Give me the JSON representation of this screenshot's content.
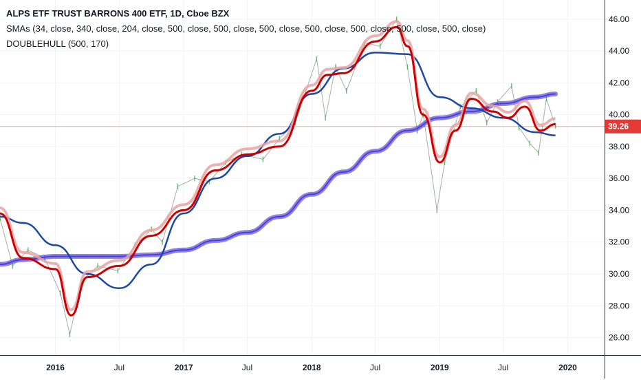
{
  "legend": {
    "title": "ALPS ETF TRUST BARRONS 400 ETF, 1D, Cboe BZX",
    "sma_line": "SMAs (34, close, 340, close, 204, close, 500, close, 500, close, 500, close, 500, close, 500, close, 500, close, 500, close)",
    "hull_line": "DOUBLEHULL (500, 170)"
  },
  "colors": {
    "price": "#4caf50",
    "price_down": "#5d6b5d",
    "sma_fast": "#cc0000",
    "sma_fast_shadow": "#e8a4a4",
    "sma_mid": "#1a47a8",
    "sma_slow": "#4a3ee8",
    "hull": "#6a5acd",
    "last_price_line": "#f4a6a6",
    "last_price_badge": "#e53935",
    "axis_text": "#131722"
  },
  "chart_data": {
    "type": "line",
    "title": "ALPS ETF TRUST BARRONS 400 ETF, 1D, Cboe BZX",
    "x_ticks": [
      "2016",
      "Jul",
      "2017",
      "Jul",
      "2018",
      "Jul",
      "2019",
      "Jul",
      "2020"
    ],
    "y_ticks": [
      "26.00",
      "28.00",
      "30.00",
      "32.00",
      "34.00",
      "36.00",
      "38.00",
      "40.00",
      "42.00",
      "44.00",
      "46.00"
    ],
    "ylim": [
      24.9,
      47.2
    ],
    "x_range": [
      "2015-07-27",
      "2020-04-15"
    ],
    "last_price": "39.26",
    "series": [
      {
        "name": "SMA 500",
        "x": [
          "2015-07-27",
          "2015-10-01",
          "2016-01-01",
          "2016-04-01",
          "2016-07-01",
          "2016-10-01",
          "2017-01-01",
          "2017-04-01",
          "2017-07-01",
          "2017-10-01",
          "2018-01-01",
          "2018-04-01",
          "2018-07-01",
          "2018-10-01",
          "2019-01-01",
          "2019-04-01",
          "2019-07-01",
          "2019-10-01",
          "2019-11-27"
        ],
        "values": [
          30.6,
          30.9,
          31.1,
          31.1,
          31.1,
          31.2,
          31.5,
          32.1,
          32.6,
          33.6,
          35.0,
          36.4,
          37.7,
          39.0,
          39.8,
          40.2,
          40.7,
          41.1,
          41.3
        ]
      },
      {
        "name": "SMA 204",
        "x": [
          "2015-07-27",
          "2015-10-01",
          "2016-01-01",
          "2016-04-01",
          "2016-07-01",
          "2016-10-01",
          "2017-01-01",
          "2017-04-01",
          "2017-07-01",
          "2017-10-01",
          "2018-01-01",
          "2018-04-01",
          "2018-07-01",
          "2018-10-01",
          "2019-01-01",
          "2019-04-01",
          "2019-07-01",
          "2019-10-01",
          "2019-11-27"
        ],
        "values": [
          33.6,
          33.2,
          31.8,
          30.0,
          29.1,
          30.6,
          33.8,
          36.0,
          37.4,
          38.8,
          41.3,
          42.9,
          43.9,
          43.8,
          41.1,
          40.4,
          39.8,
          38.9,
          38.7
        ]
      },
      {
        "name": "SMA 34",
        "x": [
          "2015-07-27",
          "2015-10-01",
          "2016-01-01",
          "2016-02-15",
          "2016-04-01",
          "2016-07-01",
          "2016-10-01",
          "2017-01-01",
          "2017-04-01",
          "2017-07-01",
          "2017-10-01",
          "2018-01-01",
          "2018-02-15",
          "2018-04-01",
          "2018-07-01",
          "2018-09-01",
          "2018-10-01",
          "2018-11-15",
          "2019-01-01",
          "2019-02-15",
          "2019-04-01",
          "2019-06-01",
          "2019-07-15",
          "2019-09-01",
          "2019-10-15",
          "2019-11-27"
        ],
        "values": [
          33.8,
          31.0,
          30.3,
          27.4,
          29.8,
          30.5,
          32.4,
          34.0,
          36.5,
          37.5,
          38.0,
          41.5,
          42.5,
          42.6,
          44.6,
          45.5,
          44.3,
          40.0,
          37.0,
          39.0,
          41.0,
          40.2,
          39.8,
          40.5,
          39.0,
          39.4
        ]
      },
      {
        "name": "Price",
        "x": [
          "2015-07-27",
          "2015-09-01",
          "2015-10-15",
          "2015-12-01",
          "2016-01-15",
          "2016-02-11",
          "2016-03-15",
          "2016-05-01",
          "2016-06-27",
          "2016-08-15",
          "2016-10-01",
          "2016-11-01",
          "2016-12-15",
          "2017-02-01",
          "2017-03-15",
          "2017-05-01",
          "2017-06-15",
          "2017-08-15",
          "2017-10-01",
          "2017-11-15",
          "2018-01-15",
          "2018-02-09",
          "2018-03-10",
          "2018-04-10",
          "2018-06-01",
          "2018-07-15",
          "2018-08-31",
          "2018-10-01",
          "2018-10-29",
          "2018-11-15",
          "2018-12-24",
          "2019-01-15",
          "2019-03-01",
          "2019-04-15",
          "2019-05-15",
          "2019-06-15",
          "2019-07-25",
          "2019-08-15",
          "2019-09-15",
          "2019-10-10",
          "2019-11-01",
          "2019-11-27"
        ],
        "values": [
          33.5,
          30.5,
          31.5,
          31.0,
          28.8,
          26.2,
          29.5,
          30.5,
          30.2,
          31.8,
          32.8,
          32.0,
          35.5,
          36.0,
          35.8,
          37.0,
          37.5,
          37.2,
          38.5,
          39.5,
          43.5,
          39.8,
          43.0,
          41.5,
          44.5,
          44.3,
          46.0,
          43.0,
          39.0,
          40.0,
          34.0,
          37.0,
          40.5,
          41.5,
          39.5,
          40.8,
          41.8,
          39.2,
          38.2,
          37.6,
          41.0,
          39.3
        ]
      }
    ]
  }
}
